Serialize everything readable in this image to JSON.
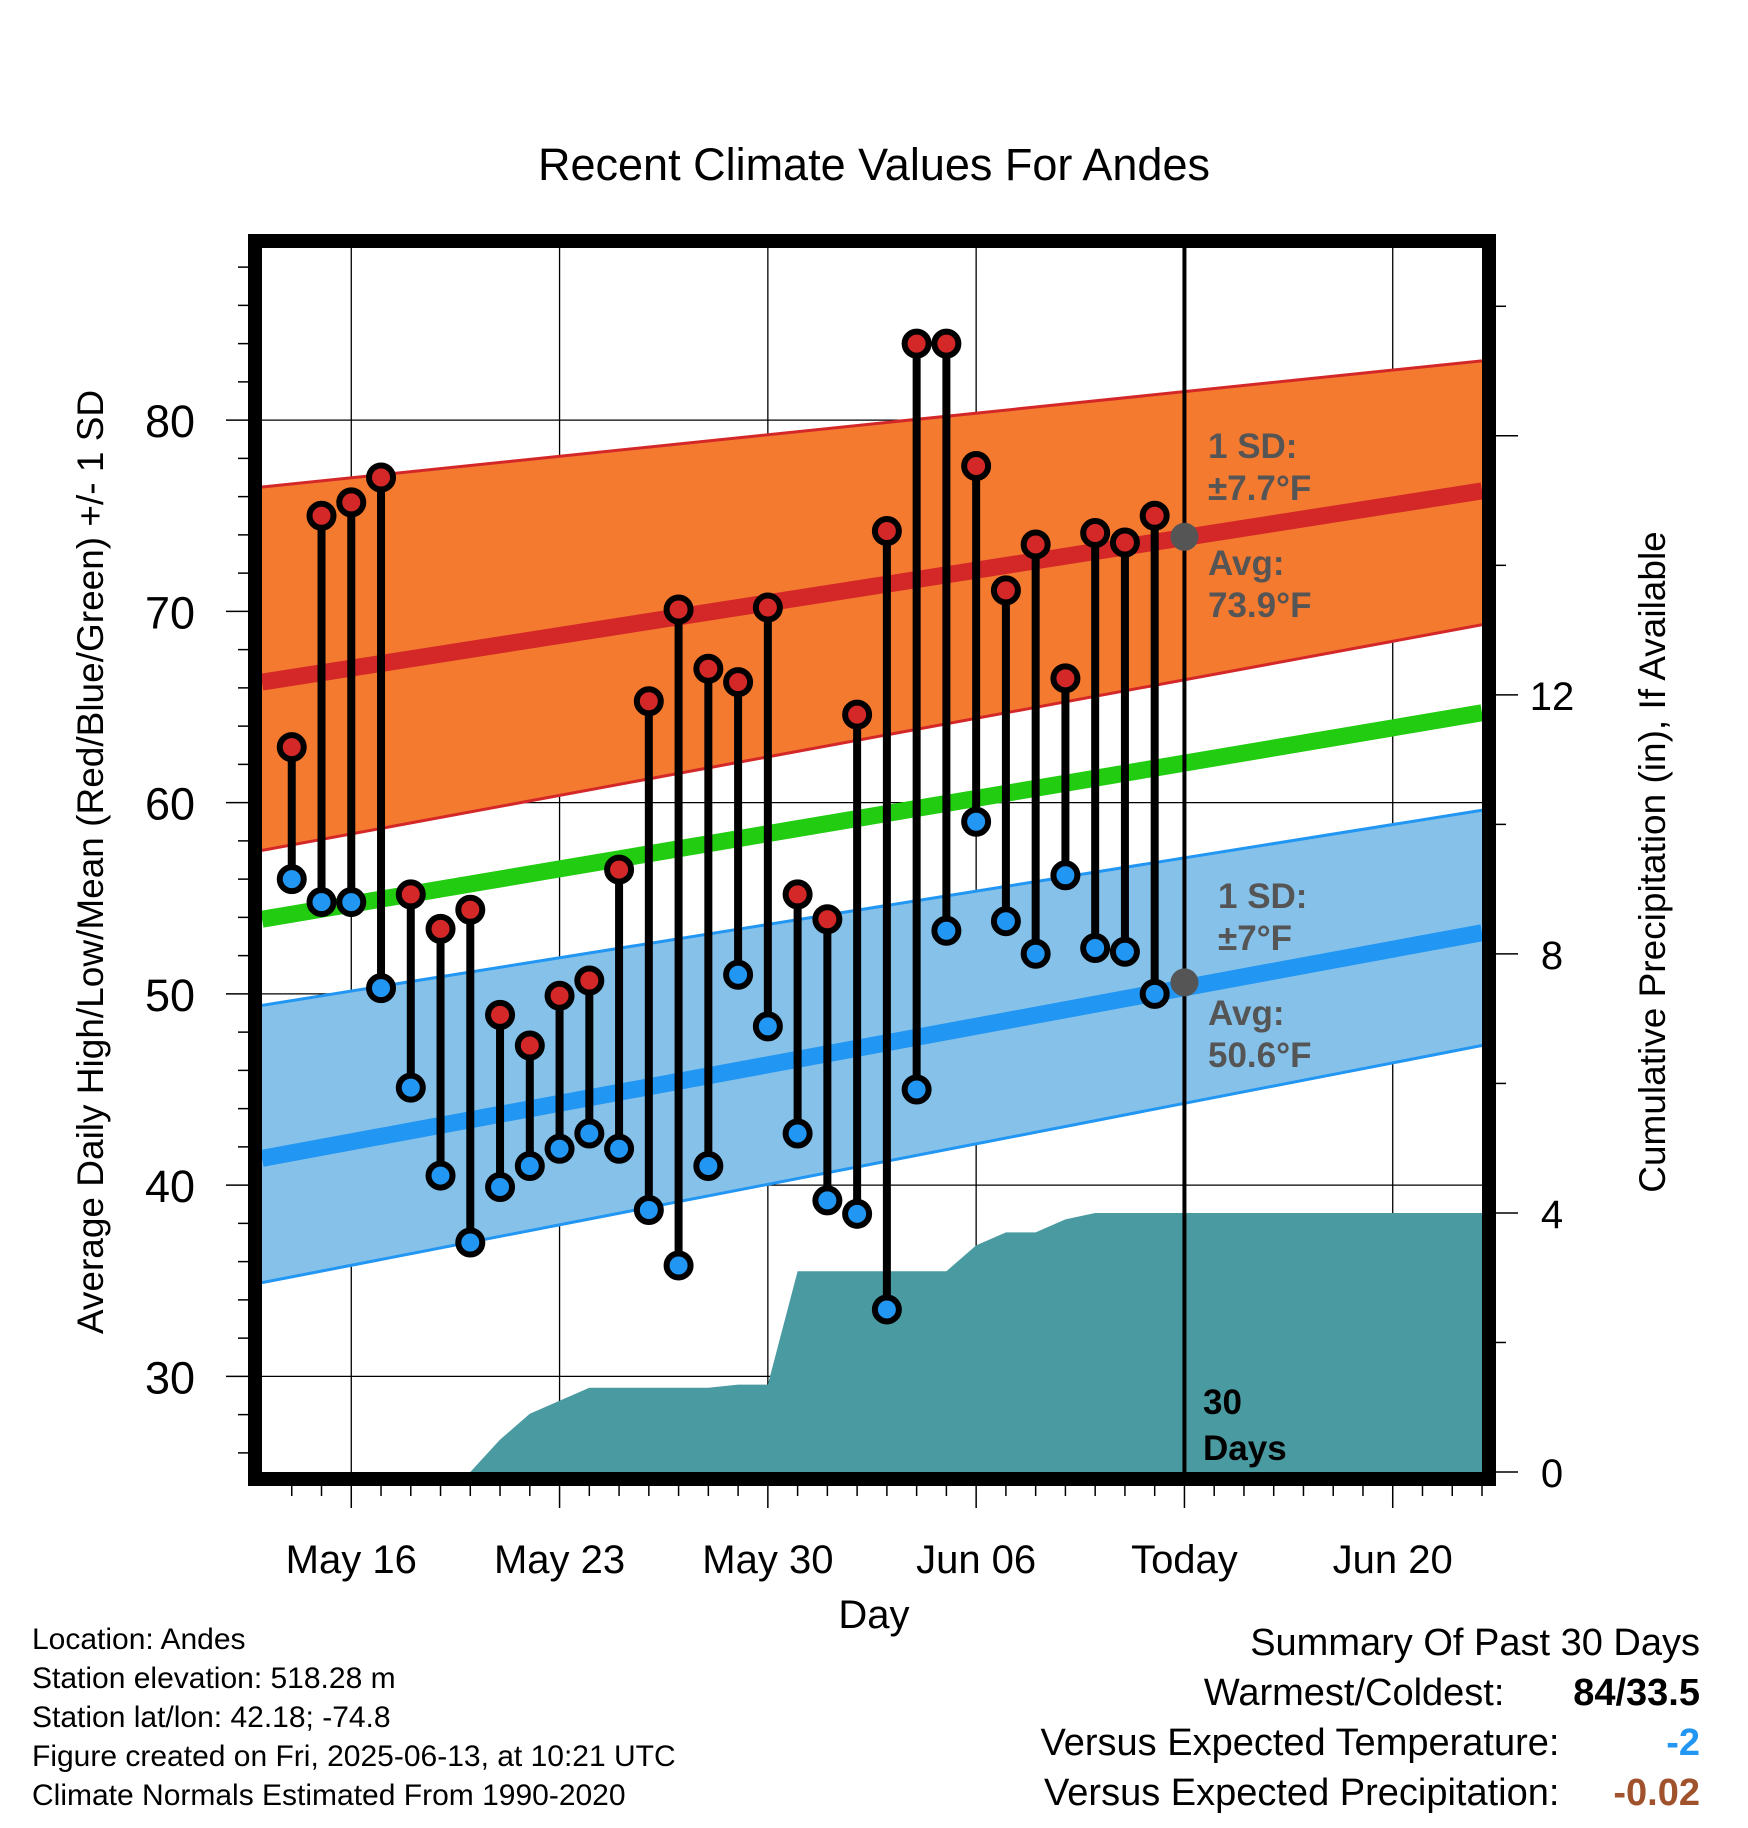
{
  "chart_data": {
    "type": "line",
    "title": "Recent Climate Values For Andes",
    "xlabel": "Day",
    "ylabel": "Average Daily High/Low/Mean (Red/Blue/Green) +/- 1 SD",
    "y2label": "Cumulative Precipitation (in), If Available",
    "x_tick_labels": [
      "May 16",
      "May 23",
      "May 30",
      "Jun 06",
      "Today",
      "Jun 20"
    ],
    "x_range": [
      "2025-05-13",
      "2025-06-23"
    ],
    "ylim": [
      25,
      89
    ],
    "y_ticks": [
      30,
      40,
      50,
      60,
      70,
      80
    ],
    "y2lim": [
      0,
      18.9
    ],
    "y2_ticks": [
      0,
      4,
      8,
      12
    ],
    "grid": true,
    "dates": [
      "2025-05-14",
      "2025-05-15",
      "2025-05-16",
      "2025-05-17",
      "2025-05-18",
      "2025-05-19",
      "2025-05-20",
      "2025-05-21",
      "2025-05-22",
      "2025-05-23",
      "2025-05-24",
      "2025-05-25",
      "2025-05-26",
      "2025-05-27",
      "2025-05-28",
      "2025-05-29",
      "2025-05-30",
      "2025-05-31",
      "2025-06-01",
      "2025-06-02",
      "2025-06-03",
      "2025-06-04",
      "2025-06-05",
      "2025-06-06",
      "2025-06-07",
      "2025-06-08",
      "2025-06-09",
      "2025-06-10",
      "2025-06-11",
      "2025-06-12"
    ],
    "series": [
      {
        "color": "#d42828",
        "values": [
          62.9,
          75.0,
          75.7,
          77.0,
          55.2,
          53.4,
          54.4,
          48.9,
          47.3,
          49.9,
          50.7,
          56.5,
          65.3,
          70.1,
          67.0,
          66.3,
          70.2,
          55.2,
          53.9,
          64.6,
          74.2,
          84.0,
          84.0,
          77.6,
          71.1,
          73.5,
          66.5,
          74.1,
          73.6,
          75.0
        ]
      },
      {
        "color": "#2196f3",
        "values": [
          56.0,
          54.8,
          54.8,
          50.3,
          45.1,
          40.5,
          37.0,
          39.9,
          41.0,
          41.9,
          42.7,
          41.9,
          38.7,
          35.8,
          41.0,
          51.0,
          48.3,
          42.7,
          39.2,
          38.5,
          33.5,
          45.0,
          53.3,
          59.0,
          53.8,
          52.1,
          56.2,
          52.4,
          52.2,
          50.0
        ]
      }
    ],
    "normals": {
      "dates": [
        "2025-05-13",
        "2025-06-23"
      ],
      "high_mean": [
        66.3,
        76.3
      ],
      "high_sd_upper": [
        76.5,
        83.1
      ],
      "high_sd_lower": [
        57.5,
        69.3
      ],
      "low_mean": [
        41.4,
        53.2
      ],
      "low_sd_upper": [
        49.4,
        59.6
      ],
      "low_sd_lower": [
        34.9,
        47.3
      ],
      "mean": [
        53.9,
        64.7
      ]
    },
    "precipitation": {
      "color": "#4a9aa1",
      "dates": [
        "2025-05-19",
        "2025-05-20",
        "2025-05-21",
        "2025-05-22",
        "2025-05-23",
        "2025-05-24",
        "2025-05-25",
        "2025-05-26",
        "2025-05-27",
        "2025-05-28",
        "2025-05-29",
        "2025-05-30",
        "2025-05-31",
        "2025-06-01",
        "2025-06-02",
        "2025-06-03",
        "2025-06-04",
        "2025-06-05",
        "2025-06-06",
        "2025-06-07",
        "2025-06-08",
        "2025-06-09",
        "2025-06-10",
        "2025-06-13",
        "2025-06-23"
      ],
      "values": [
        0,
        0,
        0.5,
        0.9,
        1.1,
        1.3,
        1.3,
        1.3,
        1.3,
        1.3,
        1.35,
        1.35,
        3.1,
        3.1,
        3.1,
        3.1,
        3.1,
        3.1,
        3.5,
        3.7,
        3.7,
        3.9,
        4.0,
        4.0,
        4.0
      ]
    },
    "annotations": {
      "high_sd_label": "1 SD:",
      "high_sd_value": "±7.7°F",
      "high_avg_label": "Avg:",
      "high_avg_value": "73.9°F",
      "high_avg": 73.9,
      "low_sd_label": "1 SD:",
      "low_sd_value": "±7°F",
      "low_avg_label": "Avg:",
      "low_avg_value": "50.6°F",
      "low_avg": 50.6,
      "today_label_1": "30",
      "today_label_2": "Days",
      "today": "2025-06-13"
    },
    "colors": {
      "high_band": "#f47a30",
      "high_line": "#d42828",
      "low_band": "#85c1e9",
      "low_line": "#2196f3",
      "mean_line": "#22cc11",
      "annotation_text": "#555555",
      "avg_marker": "#555555"
    }
  },
  "footer": {
    "location": "Location: Andes",
    "elevation": "Station elevation: 518.28 m",
    "latlon": "Station lat/lon: 42.18; -74.8",
    "created": "Figure created on Fri, 2025-06-13, at 10:21 UTC",
    "normals": "Climate Normals Estimated From 1990-2020"
  },
  "summary": {
    "title": "Summary Of Past 30 Days",
    "warmest_label": "Warmest/Coldest:",
    "warmest_value": "84/33.5",
    "temp_label": "Versus Expected Temperature:",
    "temp_value": "-2",
    "temp_color": "#2196f3",
    "precip_label": "Versus Expected Precipitation:",
    "precip_value": "-0.02",
    "precip_color": "#a0522d"
  }
}
